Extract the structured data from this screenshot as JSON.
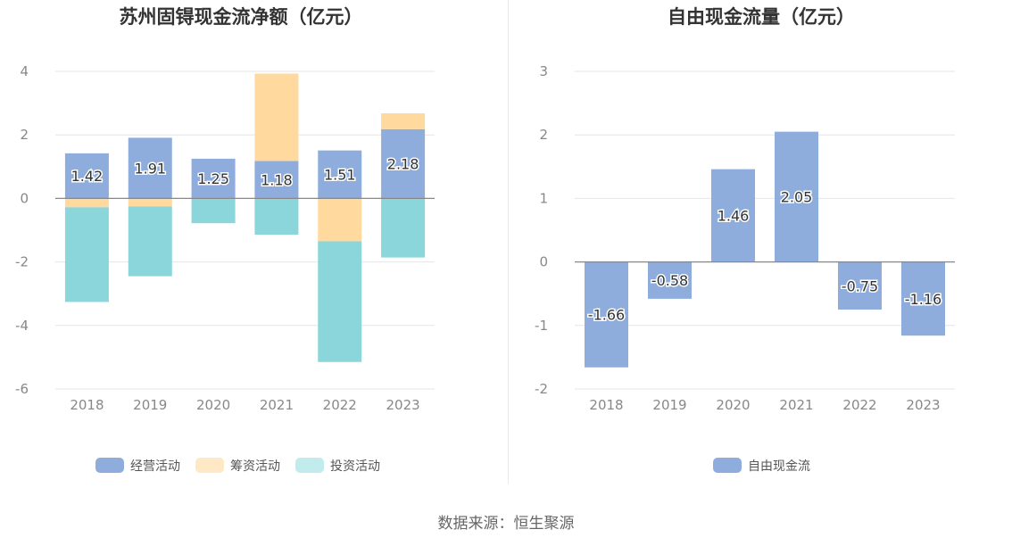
{
  "colors": {
    "operating": "#8eaddc",
    "financing": "#ffd99e",
    "investing": "#8ad6da",
    "legend_financing": "#ffe8c6",
    "legend_investing": "#c2ebee",
    "free_cf": "#8eaddc"
  },
  "source_text": "数据来源：恒生聚源",
  "chart_data": [
    {
      "type": "bar",
      "stacked": true,
      "title": "苏州固锝现金流净额（亿元）",
      "categories": [
        "2018",
        "2019",
        "2020",
        "2021",
        "2022",
        "2023"
      ],
      "series": [
        {
          "name": "经营活动",
          "values": [
            1.42,
            1.91,
            1.25,
            1.18,
            1.51,
            2.18
          ],
          "labels": [
            "1.42",
            "1.91",
            "1.25",
            "1.18",
            "1.51",
            "2.18"
          ]
        },
        {
          "name": "筹资活动",
          "values": [
            -0.28,
            -0.25,
            0.0,
            2.75,
            -1.35,
            0.5
          ]
        },
        {
          "name": "投资活动",
          "values": [
            -2.98,
            -2.2,
            -0.78,
            -1.14,
            -3.8,
            -1.86
          ]
        }
      ],
      "ylim": [
        -6,
        4
      ],
      "yticks": [
        "4",
        "2",
        "0",
        "-2",
        "-4",
        "-6"
      ],
      "grid": true,
      "legend_position": "bottom"
    },
    {
      "type": "bar",
      "title": "自由现金流量（亿元）",
      "categories": [
        "2018",
        "2019",
        "2020",
        "2021",
        "2022",
        "2023"
      ],
      "series": [
        {
          "name": "自由现金流",
          "values": [
            -1.66,
            -0.58,
            1.46,
            2.05,
            -0.75,
            -1.16
          ],
          "labels": [
            "-1.66",
            "-0.58",
            "1.46",
            "2.05",
            "-0.75",
            "-1.16"
          ]
        }
      ],
      "ylim": [
        -2,
        3
      ],
      "yticks": [
        "3",
        "2",
        "1",
        "0",
        "-1",
        "-2"
      ],
      "grid": true,
      "legend_position": "bottom"
    }
  ]
}
